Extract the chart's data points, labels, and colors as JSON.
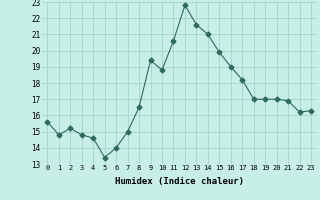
{
  "x": [
    0,
    1,
    2,
    3,
    4,
    5,
    6,
    7,
    8,
    9,
    10,
    11,
    12,
    13,
    14,
    15,
    16,
    17,
    18,
    19,
    20,
    21,
    22,
    23
  ],
  "y": [
    15.6,
    14.8,
    15.2,
    14.8,
    14.6,
    13.4,
    14.0,
    15.0,
    16.5,
    19.4,
    18.8,
    20.6,
    22.8,
    21.6,
    21.0,
    19.9,
    19.0,
    18.2,
    17.0,
    17.0,
    17.0,
    16.9,
    16.2,
    16.3
  ],
  "line_color": "#2e6b5e",
  "marker": "D",
  "marker_size": 2.5,
  "bg_color": "#c8eee8",
  "grid_color": "#a0ccc8",
  "xlabel": "Humidex (Indice chaleur)",
  "xlim": [
    -0.5,
    23.5
  ],
  "ylim": [
    13,
    23
  ],
  "yticks": [
    13,
    14,
    15,
    16,
    17,
    18,
    19,
    20,
    21,
    22,
    23
  ],
  "xticks": [
    0,
    1,
    2,
    3,
    4,
    5,
    6,
    7,
    8,
    9,
    10,
    11,
    12,
    13,
    14,
    15,
    16,
    17,
    18,
    19,
    20,
    21,
    22,
    23
  ]
}
